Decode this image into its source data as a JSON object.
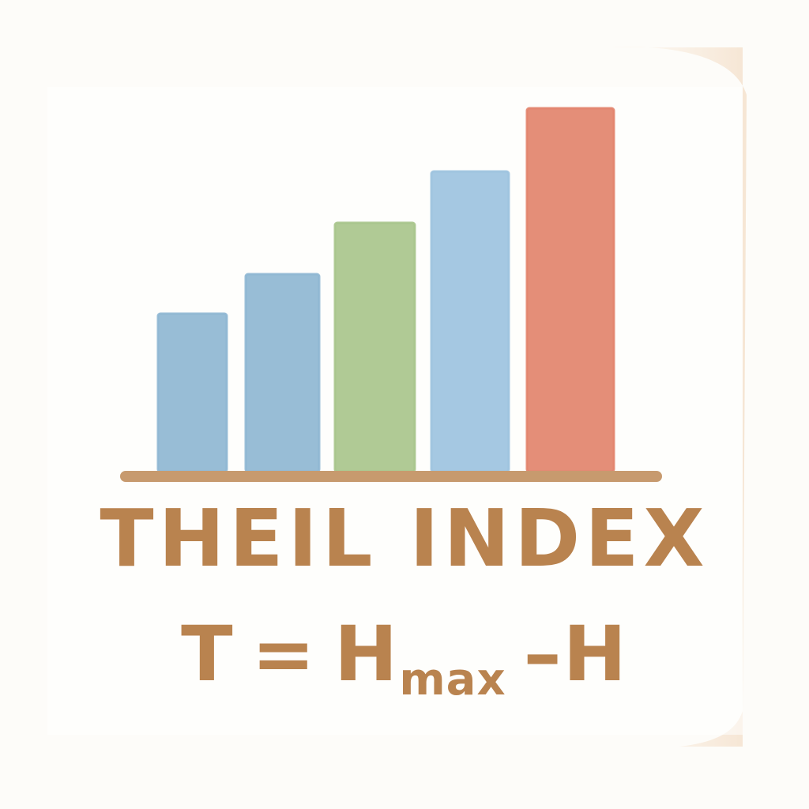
{
  "chart_data": {
    "type": "bar",
    "categories": [
      "",
      "",
      "",
      "",
      ""
    ],
    "values": [
      2.0,
      2.5,
      3.15,
      3.8,
      4.6
    ],
    "ylim": [
      0,
      4.6
    ],
    "grid": false,
    "legend": "none",
    "bar_colors": [
      "#8fb7d3",
      "#8fb7d3",
      "#a9c58c",
      "#9dc3df",
      "#e2846d"
    ],
    "title": "THEIL INDEX"
  },
  "formula": {
    "lhs": "T",
    "equals": "=",
    "h": "H",
    "sub": "max",
    "minus": "–",
    "rhs": "H"
  },
  "colors": {
    "text": "#b9834f",
    "baseline": "#c79a6e"
  }
}
